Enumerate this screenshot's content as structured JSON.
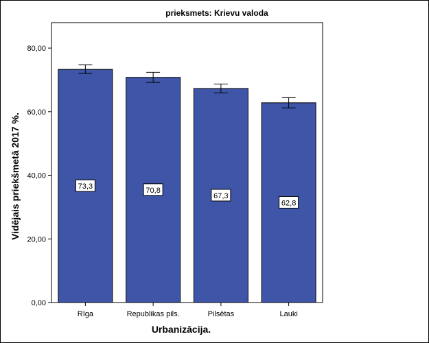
{
  "chart_data": {
    "type": "bar",
    "title": "prieksmets: Krievu valoda",
    "xlabel": "Urbanizācija.",
    "ylabel": "Vidējais priekšmetā 2017 %.",
    "categories": [
      "Rīga",
      "Republikas pils.",
      "Pilsētas",
      "Lauki"
    ],
    "values": [
      73.3,
      70.8,
      67.3,
      62.8
    ],
    "value_labels": [
      "73,3",
      "70,8",
      "67,3",
      "62,8"
    ],
    "error_low": [
      72.0,
      69.2,
      65.9,
      61.2
    ],
    "error_high": [
      74.7,
      72.4,
      68.7,
      64.4
    ],
    "ylim": [
      0,
      88
    ],
    "yticks": [
      0,
      20,
      40,
      60,
      80
    ],
    "ytick_labels": [
      "0,00",
      "20,00",
      "40,00",
      "60,00",
      "80,00"
    ],
    "bar_color": "#3f56a8",
    "grid": false
  }
}
